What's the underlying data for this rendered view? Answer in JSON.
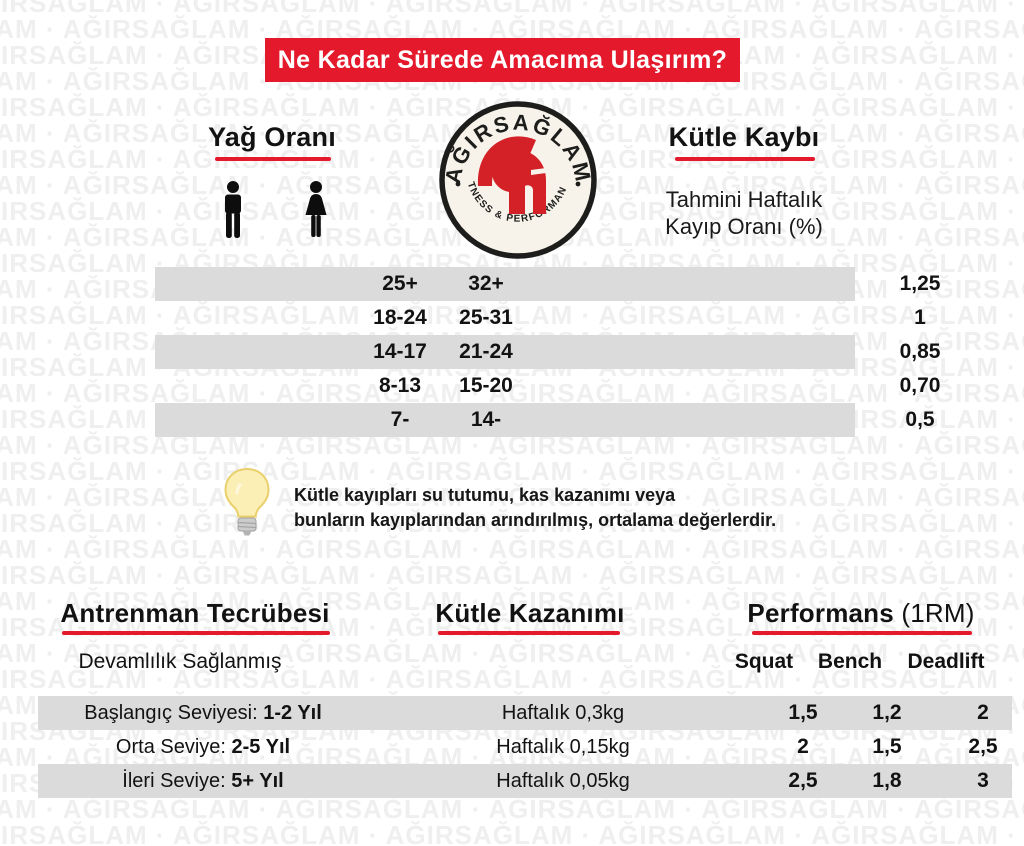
{
  "title_banner": {
    "text": "Ne Kadar Sürede Amacıma Ulaşırım?"
  },
  "watermark": {
    "word": "AĞIRSAĞLAM",
    "separator": "·"
  },
  "logo": {
    "brand": "AĞIRSAĞLAM",
    "tagline": "FITNESS & PERFORMANCE"
  },
  "icons": {
    "male": "male-icon",
    "female": "female-icon",
    "bulb": "lightbulb-icon",
    "helmet": "spartan-helmet-icon"
  },
  "colors": {
    "accent_red": "#e4192b",
    "row_gray": "#dbdbdb",
    "text_black": "#121212",
    "bulb_yellow": "#fbefb6",
    "logo_cream": "#f7f3ea",
    "logo_red": "#d42127"
  },
  "fat_section": {
    "title": "Yağ Oranı"
  },
  "loss_section": {
    "title": "Kütle Kaybı",
    "subtitle_line1": "Tahmini Haftalık",
    "subtitle_line2": "Kayıp Oranı (%)"
  },
  "fat_table": {
    "rows": [
      {
        "male": "25+",
        "female": "32+",
        "loss": "1,25"
      },
      {
        "male": "18-24",
        "female": "25-31",
        "loss": "1"
      },
      {
        "male": "14-17",
        "female": "21-24",
        "loss": "0,85"
      },
      {
        "male": "8-13",
        "female": "15-20",
        "loss": "0,70"
      },
      {
        "male": "7-",
        "female": "14-",
        "loss": "0,5"
      }
    ]
  },
  "note": {
    "line1": "Kütle kayıpları su tutumu, kas kazanımı veya",
    "line2": "bunların kayıplarından arındırılmış, ortalama değerlerdir."
  },
  "training_section": {
    "experience_title": "Antrenman Tecrübesi",
    "experience_subtitle": "Devamlılık Sağlanmış",
    "gain_title": "Kütle Kazanımı",
    "performance_title": "Performans",
    "performance_suffix": " (1RM)",
    "col_squat": "Squat",
    "col_bench": "Bench",
    "col_deadlift": "Deadlift"
  },
  "training_table": {
    "rows": [
      {
        "level_prefix": "Başlangıç Seviyesi: ",
        "level_bold": "1-2 Yıl",
        "gain": "Haftalık 0,3kg",
        "squat": "1,5",
        "bench": "1,2",
        "deadlift": "2"
      },
      {
        "level_prefix": "Orta Seviye: ",
        "level_bold": "2-5 Yıl",
        "gain": "Haftalık 0,15kg",
        "squat": "2",
        "bench": "1,5",
        "deadlift": "2,5"
      },
      {
        "level_prefix": "İleri Seviye: ",
        "level_bold": "5+ Yıl",
        "gain": "Haftalık 0,05kg",
        "squat": "2,5",
        "bench": "1,8",
        "deadlift": "3"
      }
    ]
  },
  "chart_data": [
    {
      "type": "table",
      "title": "Yağ Oranı → Kütle Kaybı",
      "columns": [
        "male-icon (Yağ Oranı)",
        "female-icon (Yağ Oranı)",
        "Tahmini Haftalık Kayıp Oranı (%)"
      ],
      "rows": [
        [
          "25+",
          "32+",
          "1,25"
        ],
        [
          "18-24",
          "25-31",
          "1"
        ],
        [
          "14-17",
          "21-24",
          "0,85"
        ],
        [
          "8-13",
          "15-20",
          "0,70"
        ],
        [
          "7-",
          "14-",
          "0,5"
        ]
      ]
    },
    {
      "type": "table",
      "title": "Antrenman Tecrübesi → Kütle Kazanımı / Performans (1RM)",
      "columns": [
        "Antrenman Tecrübesi",
        "Kütle Kazanımı",
        "Squat",
        "Bench",
        "Deadlift"
      ],
      "rows": [
        [
          "Başlangıç Seviyesi: 1-2 Yıl",
          "Haftalık 0,3kg",
          "1,5",
          "1,2",
          "2"
        ],
        [
          "Orta Seviye: 2-5 Yıl",
          "Haftalık 0,15kg",
          "2",
          "1,5",
          "2,5"
        ],
        [
          "İleri Seviye: 5+ Yıl",
          "Haftalık 0,05kg",
          "2,5",
          "1,8",
          "3"
        ]
      ]
    }
  ]
}
